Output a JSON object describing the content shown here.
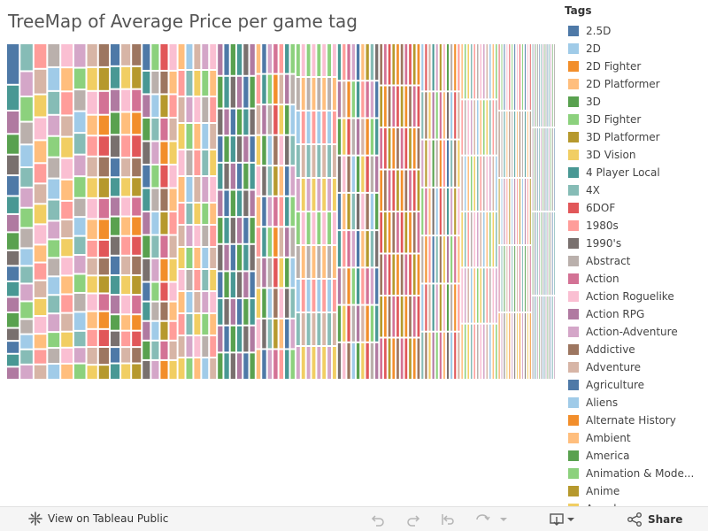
{
  "window": {
    "title": "TreeMap of Average Price per game tag"
  },
  "legend": {
    "title": "Tags",
    "items": [
      {
        "label": "2.5D",
        "color": "#4e79a7"
      },
      {
        "label": "2D",
        "color": "#a0cbe8"
      },
      {
        "label": "2D Fighter",
        "color": "#f28e2b"
      },
      {
        "label": "2D Platformer",
        "color": "#ffbe7d"
      },
      {
        "label": "3D",
        "color": "#59a14f"
      },
      {
        "label": "3D Fighter",
        "color": "#8cd17d"
      },
      {
        "label": "3D Platformer",
        "color": "#b6992d"
      },
      {
        "label": "3D Vision",
        "color": "#f1ce63"
      },
      {
        "label": "4 Player Local",
        "color": "#499894"
      },
      {
        "label": "4X",
        "color": "#86bcb6"
      },
      {
        "label": "6DOF",
        "color": "#e15759"
      },
      {
        "label": "1980s",
        "color": "#ff9d9a"
      },
      {
        "label": "1990's",
        "color": "#79706e"
      },
      {
        "label": "Abstract",
        "color": "#bab0ac"
      },
      {
        "label": "Action",
        "color": "#d37295"
      },
      {
        "label": "Action Roguelike",
        "color": "#fabfd2"
      },
      {
        "label": "Action RPG",
        "color": "#b07aa1"
      },
      {
        "label": "Action-Adventure",
        "color": "#d4a6c8"
      },
      {
        "label": "Addictive",
        "color": "#9d7660"
      },
      {
        "label": "Adventure",
        "color": "#d7b5a6"
      },
      {
        "label": "Agriculture",
        "color": "#4e79a7"
      },
      {
        "label": "Aliens",
        "color": "#a0cbe8"
      },
      {
        "label": "Alternate History",
        "color": "#f28e2b"
      },
      {
        "label": "Ambient",
        "color": "#ffbe7d"
      },
      {
        "label": "America",
        "color": "#59a14f"
      },
      {
        "label": "Animation & Mode...",
        "color": "#8cd17d"
      },
      {
        "label": "Anime",
        "color": "#b6992d"
      },
      {
        "label": "Arcade",
        "color": "#f1ce63"
      }
    ]
  },
  "chart_data": {
    "type": "treemap",
    "title": "TreeMap of Average Price per game tag",
    "legend_title": "Tags",
    "legend_position": "right",
    "palette": [
      "#4e79a7",
      "#a0cbe8",
      "#f28e2b",
      "#ffbe7d",
      "#59a14f",
      "#8cd17d",
      "#b6992d",
      "#f1ce63",
      "#499894",
      "#86bcb6",
      "#e15759",
      "#ff9d9a",
      "#79706e",
      "#bab0ac",
      "#d37295",
      "#fabfd2",
      "#b07aa1",
      "#d4a6c8",
      "#9d7660",
      "#d7b5a6"
    ],
    "columns": [
      {
        "count": 1,
        "values": [
          16,
          10,
          9,
          8,
          8,
          8,
          7,
          7,
          7,
          6,
          6,
          6,
          6,
          6,
          5,
          5,
          5,
          5
        ]
      },
      {
        "count": 1,
        "values": [
          11,
          10,
          10,
          9,
          9,
          8,
          8,
          8,
          8,
          7,
          7,
          7,
          7,
          6,
          6,
          6,
          6
        ]
      },
      {
        "count": 1,
        "values": [
          10,
          10,
          9,
          9,
          9,
          8,
          8,
          8,
          8,
          7,
          7,
          7,
          7,
          7,
          6,
          6,
          6
        ]
      },
      {
        "count": 1,
        "values": [
          9,
          9,
          9,
          8,
          8,
          8,
          8,
          8,
          7,
          7,
          7,
          7,
          7,
          7,
          6,
          6,
          6
        ]
      },
      {
        "count": 1,
        "values": [
          9,
          9,
          9,
          8,
          8,
          8,
          8,
          7,
          7,
          7,
          7,
          7,
          7,
          7,
          6,
          6,
          6
        ]
      },
      {
        "count": 1,
        "values": [
          9,
          8,
          8,
          8,
          8,
          8,
          8,
          7,
          7,
          7,
          7,
          7,
          7,
          7,
          6,
          6,
          6
        ]
      },
      {
        "count": 2,
        "values": [
          8,
          8,
          8,
          7,
          7,
          7,
          7,
          7,
          7,
          6,
          6,
          6,
          6,
          6,
          6,
          6,
          5
        ]
      },
      {
        "count": 3,
        "values": [
          7,
          7,
          7,
          7,
          7,
          6,
          6,
          6,
          6,
          6,
          6,
          6,
          6,
          5,
          5,
          5,
          5
        ]
      },
      {
        "count": 4,
        "values": [
          7,
          6,
          6,
          6,
          6,
          6,
          6,
          6,
          6,
          6,
          5,
          5,
          5,
          5,
          5
        ]
      },
      {
        "count": 5,
        "values": [
          6,
          6,
          6,
          6,
          6,
          6,
          5,
          5,
          5,
          5,
          5,
          5,
          5,
          5
        ]
      },
      {
        "count": 6,
        "values": [
          6,
          6,
          5,
          5,
          5,
          5,
          5,
          5,
          5,
          5,
          5,
          5
        ]
      },
      {
        "count": 7,
        "values": [
          5,
          5,
          5,
          5,
          5,
          5,
          5,
          5,
          5,
          5,
          5
        ]
      },
      {
        "count": 8,
        "values": [
          5,
          5,
          5,
          5,
          5,
          5,
          5,
          5,
          5,
          5
        ]
      },
      {
        "count": 9,
        "values": [
          5,
          5,
          5,
          5,
          5,
          5,
          5,
          5,
          5
        ]
      },
      {
        "count": 10,
        "values": [
          5,
          5,
          5,
          5,
          5,
          5,
          5,
          5
        ]
      },
      {
        "count": 11,
        "values": [
          5,
          5,
          5,
          5,
          5,
          5,
          5
        ]
      },
      {
        "count": 12,
        "values": [
          5,
          5,
          5,
          5,
          5,
          5
        ]
      },
      {
        "count": 13,
        "values": [
          5,
          5,
          5,
          5,
          5
        ]
      },
      {
        "count": 14,
        "values": [
          4,
          4,
          4,
          4
        ]
      }
    ]
  },
  "toolbar": {
    "view_label": "View on Tableau Public",
    "share_label": "Share"
  },
  "icons": {
    "view": "tableau-logo-icon",
    "undo": "undo-icon",
    "redo": "redo-icon",
    "revert": "revert-icon",
    "refresh": "refresh-icon",
    "download": "download-icon",
    "share": "share-icon"
  }
}
